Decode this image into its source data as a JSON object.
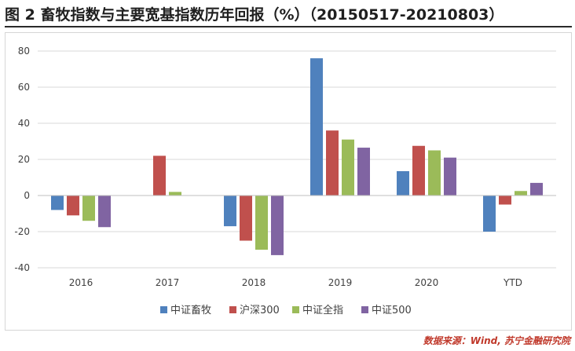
{
  "title": "图 2  畜牧指数与主要宽基指数历年回报（%）（20150517-20210803）",
  "source": "数据来源：Wind, 苏宁金融研究院",
  "chart_data": {
    "type": "bar",
    "categories": [
      "2016",
      "2017",
      "2018",
      "2019",
      "2020",
      "YTD"
    ],
    "series": [
      {
        "name": "中证畜牧",
        "color": "#4f81bd",
        "values": [
          -8,
          null,
          -17,
          76,
          13.5,
          -20
        ]
      },
      {
        "name": "沪深300",
        "color": "#c0504d",
        "values": [
          -11,
          22,
          -25,
          36,
          27.5,
          -5
        ]
      },
      {
        "name": "中证全指",
        "color": "#9bbb59",
        "values": [
          -14,
          2,
          -30,
          31,
          25,
          2.5
        ]
      },
      {
        "name": "中证500",
        "color": "#8064a2",
        "values": [
          -17.5,
          null,
          -33,
          26.5,
          21,
          7
        ]
      }
    ],
    "ylim": [
      -40,
      80
    ],
    "yticks": [
      -40,
      -20,
      0,
      20,
      40,
      60,
      80
    ],
    "xlabel": "",
    "ylabel": "",
    "grid": true,
    "legend": "bottom"
  }
}
